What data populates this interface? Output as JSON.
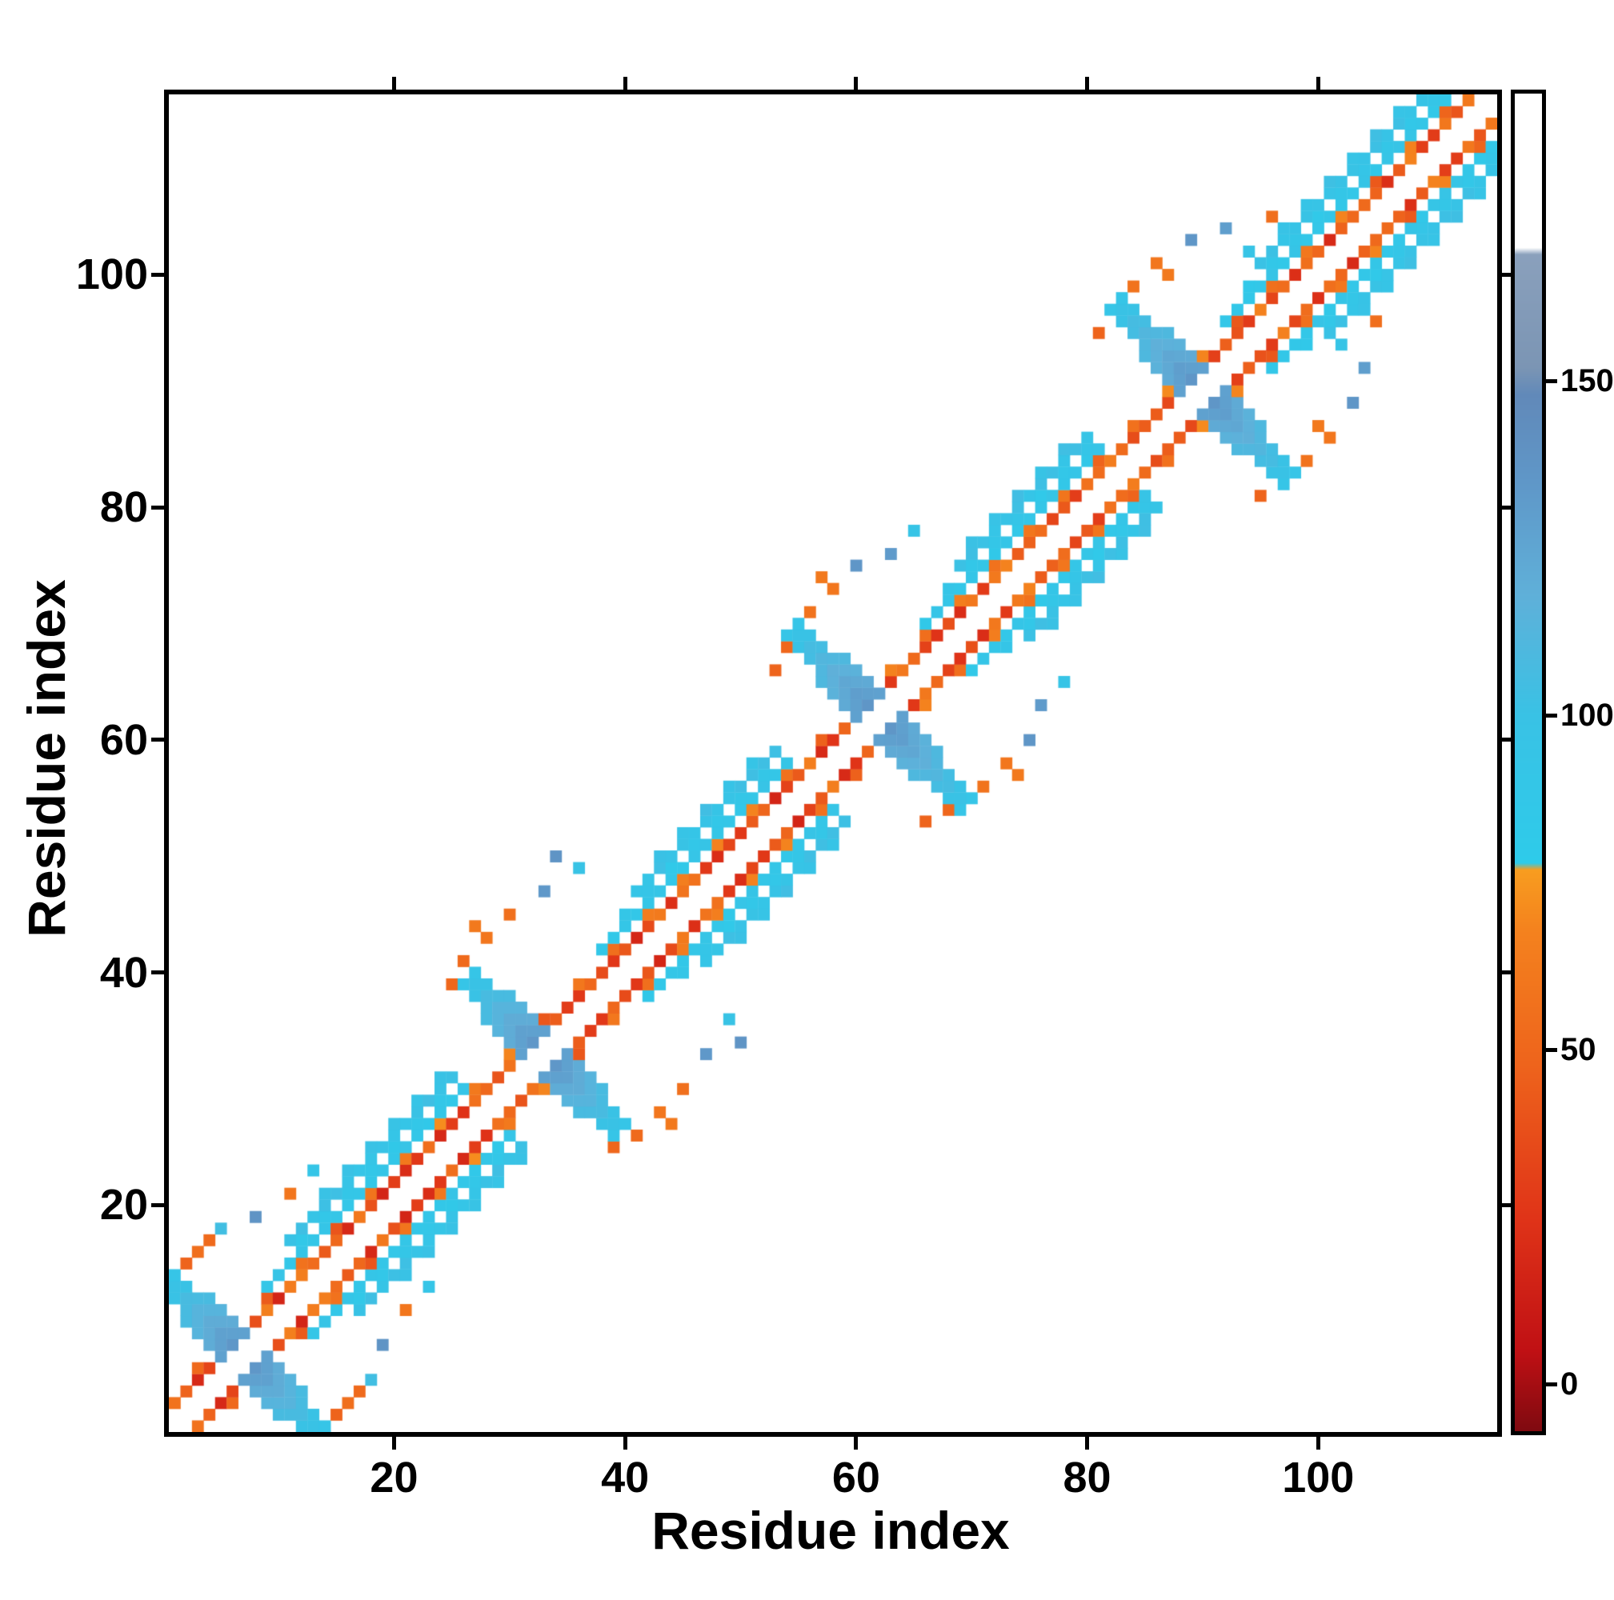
{
  "chart_data": {
    "type": "heatmap",
    "title": "",
    "xlabel": "Residue index",
    "ylabel": "Residue index",
    "n_residues": 115,
    "x_range": [
      1,
      115
    ],
    "y_range": [
      1,
      115
    ],
    "x_ticks": [
      20,
      40,
      60,
      80,
      100
    ],
    "y_ticks": [
      20,
      40,
      60,
      80,
      100
    ],
    "grid": false,
    "background": "#ffffff",
    "symmetric": true,
    "min_sequence_separation": 2,
    "colorbar": {
      "ticks": [
        0,
        50,
        100,
        150
      ],
      "range": [
        -7,
        193
      ],
      "stops": [
        [
          -7,
          "#7f0a10"
        ],
        [
          5,
          "#c01014"
        ],
        [
          25,
          "#e03418"
        ],
        [
          48,
          "#ee641c"
        ],
        [
          68,
          "#f4821e"
        ],
        [
          77,
          "#f89d1f"
        ],
        [
          78,
          "#2ecbea"
        ],
        [
          100,
          "#39c2e5"
        ],
        [
          118,
          "#5fb0d9"
        ],
        [
          135,
          "#5f97c8"
        ],
        [
          148,
          "#6189b9"
        ],
        [
          152,
          "#7b95b4"
        ],
        [
          169,
          "#8aa0bc"
        ],
        [
          170,
          "#ffffff"
        ],
        [
          193,
          "#ffffff"
        ]
      ]
    },
    "features": {
      "diagonal_bands": [
        {
          "i0": 1,
          "i1": 113,
          "offset": 2,
          "value": 42,
          "jitter": 26,
          "step": 1
        },
        {
          "i0": 3,
          "i1": 111,
          "offset": 3,
          "value": 56,
          "jitter": 16,
          "step": 3
        },
        {
          "i0": 9,
          "i1": 26,
          "offset": 4,
          "value": 90,
          "jitter": 6,
          "step": 1
        },
        {
          "i0": 12,
          "i1": 25,
          "offset": 5,
          "value": 88,
          "jitter": 5,
          "step": 2
        },
        {
          "i0": 11,
          "i1": 25,
          "offset": 6,
          "value": 97,
          "jitter": 6,
          "step": 1
        },
        {
          "i0": 14,
          "i1": 24,
          "offset": 7,
          "value": 99,
          "jitter": 5,
          "step": 2
        },
        {
          "i0": 38,
          "i1": 54,
          "offset": 4,
          "value": 90,
          "jitter": 6,
          "step": 1
        },
        {
          "i0": 40,
          "i1": 53,
          "offset": 5,
          "value": 88,
          "jitter": 5,
          "step": 2
        },
        {
          "i0": 41,
          "i1": 53,
          "offset": 6,
          "value": 97,
          "jitter": 6,
          "step": 1
        },
        {
          "i0": 43,
          "i1": 52,
          "offset": 7,
          "value": 99,
          "jitter": 5,
          "step": 2
        },
        {
          "i0": 66,
          "i1": 81,
          "offset": 4,
          "value": 90,
          "jitter": 6,
          "step": 1
        },
        {
          "i0": 68,
          "i1": 80,
          "offset": 5,
          "value": 88,
          "jitter": 5,
          "step": 2
        },
        {
          "i0": 69,
          "i1": 80,
          "offset": 6,
          "value": 97,
          "jitter": 6,
          "step": 1
        },
        {
          "i0": 70,
          "i1": 79,
          "offset": 7,
          "value": 99,
          "jitter": 5,
          "step": 2
        },
        {
          "i0": 92,
          "i1": 111,
          "offset": 4,
          "value": 90,
          "jitter": 6,
          "step": 1
        },
        {
          "i0": 94,
          "i1": 110,
          "offset": 5,
          "value": 88,
          "jitter": 5,
          "step": 2
        },
        {
          "i0": 95,
          "i1": 110,
          "offset": 6,
          "value": 97,
          "jitter": 6,
          "step": 1
        },
        {
          "i0": 97,
          "i1": 109,
          "offset": 7,
          "value": 99,
          "jitter": 5,
          "step": 2
        }
      ],
      "antidiagonal_crosses": [
        {
          "center": 7,
          "half_len": 6,
          "thickness": 2,
          "v_center": 142,
          "v_end": 100
        },
        {
          "center": 33,
          "half_len": 6,
          "thickness": 2,
          "v_center": 142,
          "v_end": 100
        },
        {
          "center": 62,
          "half_len": 7,
          "thickness": 2,
          "v_center": 142,
          "v_end": 100
        },
        {
          "center": 90,
          "half_len": 7,
          "thickness": 2,
          "v_center": 142,
          "v_end": 100
        }
      ],
      "dots": [
        [
          3,
          16,
          55
        ],
        [
          2,
          15,
          48
        ],
        [
          5,
          18,
          104
        ],
        [
          8,
          19,
          138
        ],
        [
          11,
          21,
          60
        ],
        [
          13,
          23,
          92
        ],
        [
          1,
          13,
          58
        ],
        [
          4,
          17,
          52
        ],
        [
          26,
          41,
          52
        ],
        [
          28,
          43,
          60
        ],
        [
          30,
          45,
          56
        ],
        [
          33,
          47,
          134
        ],
        [
          34,
          50,
          138
        ],
        [
          36,
          49,
          98
        ],
        [
          27,
          44,
          62
        ],
        [
          25,
          39,
          50
        ],
        [
          54,
          68,
          50
        ],
        [
          56,
          71,
          58
        ],
        [
          58,
          73,
          60
        ],
        [
          60,
          75,
          136
        ],
        [
          63,
          76,
          132
        ],
        [
          65,
          78,
          96
        ],
        [
          53,
          66,
          48
        ],
        [
          57,
          74,
          62
        ],
        [
          82,
          97,
          52
        ],
        [
          84,
          99,
          58
        ],
        [
          86,
          101,
          60
        ],
        [
          89,
          103,
          136
        ],
        [
          92,
          104,
          130
        ],
        [
          94,
          102,
          96
        ],
        [
          81,
          95,
          48
        ],
        [
          87,
          100,
          62
        ],
        [
          96,
          105,
          55
        ]
      ]
    }
  }
}
